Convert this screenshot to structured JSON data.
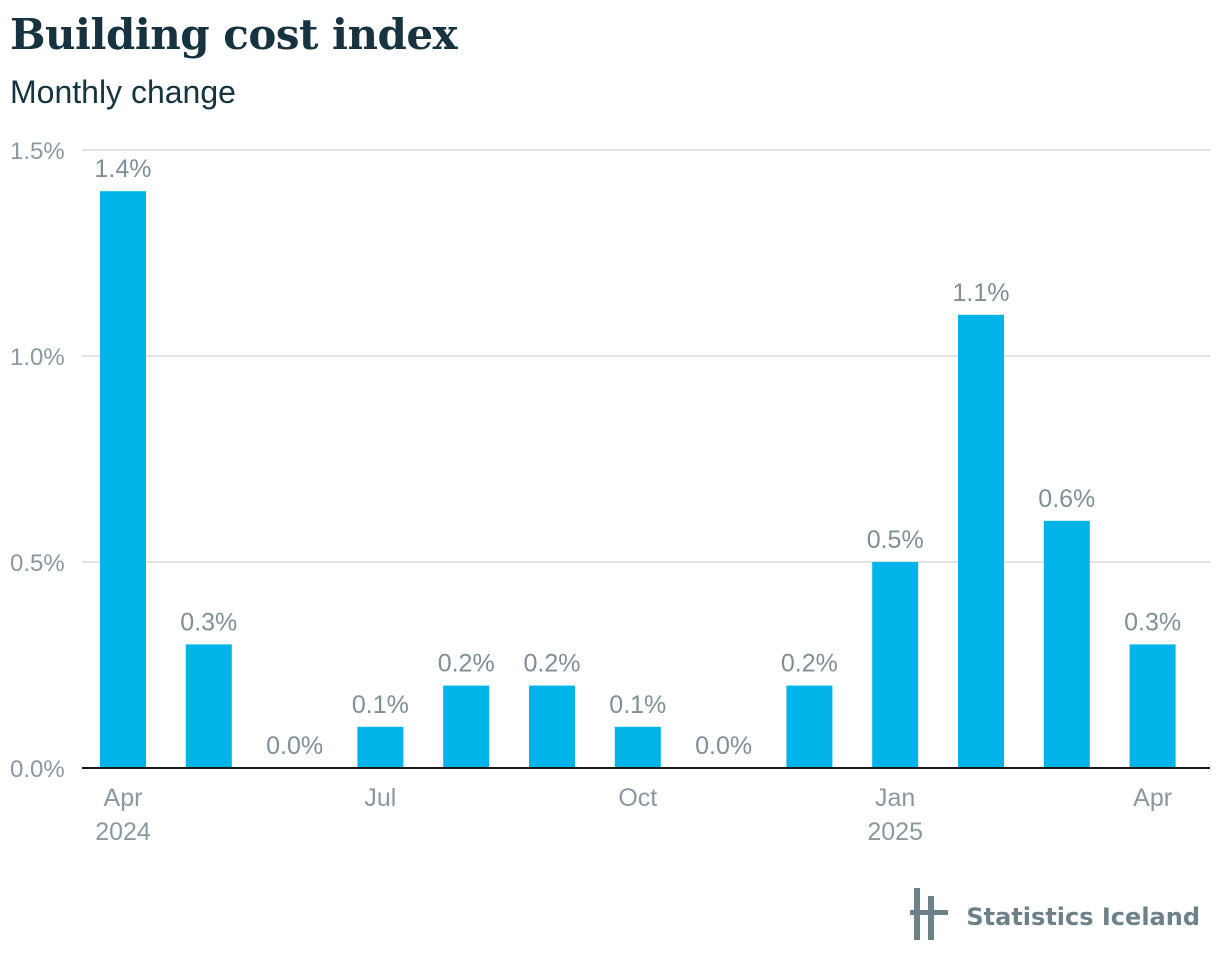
{
  "title": "Building cost index",
  "subtitle": "Monthly change",
  "brand": {
    "name": "Statistics Iceland",
    "logo_icon": "statistics-iceland-logo-icon"
  },
  "colors": {
    "bar": "#00b3e9",
    "grid": "#dcdcdc",
    "axis": "#1a1a1a",
    "text_muted": "#8a98a0",
    "title": "#17333f"
  },
  "chart_data": {
    "type": "bar",
    "categories": [
      "Apr 2024",
      "May 2024",
      "Jun 2024",
      "Jul 2024",
      "Aug 2024",
      "Sep 2024",
      "Oct 2024",
      "Nov 2024",
      "Dec 2024",
      "Jan 2025",
      "Feb 2025",
      "Mar 2025",
      "Apr 2025"
    ],
    "values": [
      1.4,
      0.3,
      0.0,
      0.1,
      0.2,
      0.2,
      0.1,
      0.0,
      0.2,
      0.5,
      1.1,
      0.6,
      0.3
    ],
    "data_labels": [
      "1.4%",
      "0.3%",
      "0.0%",
      "0.1%",
      "0.2%",
      "0.2%",
      "0.1%",
      "0.0%",
      "0.2%",
      "0.5%",
      "1.1%",
      "0.6%",
      "0.3%"
    ],
    "ylim": [
      0,
      1.5
    ],
    "y_ticks": [
      0,
      0.5,
      1.0,
      1.5
    ],
    "y_tick_labels": [
      "0.0%",
      "0.5%",
      "1.0%",
      "1.5%"
    ],
    "x_tick_labels": [
      {
        "index": 0,
        "lines": [
          "Apr",
          "2024"
        ]
      },
      {
        "index": 3,
        "lines": [
          "Jul"
        ]
      },
      {
        "index": 6,
        "lines": [
          "Oct"
        ]
      },
      {
        "index": 9,
        "lines": [
          "Jan",
          "2025"
        ]
      },
      {
        "index": 12,
        "lines": [
          "Apr"
        ]
      }
    ],
    "grid": true,
    "xlabel": "",
    "ylabel": ""
  }
}
